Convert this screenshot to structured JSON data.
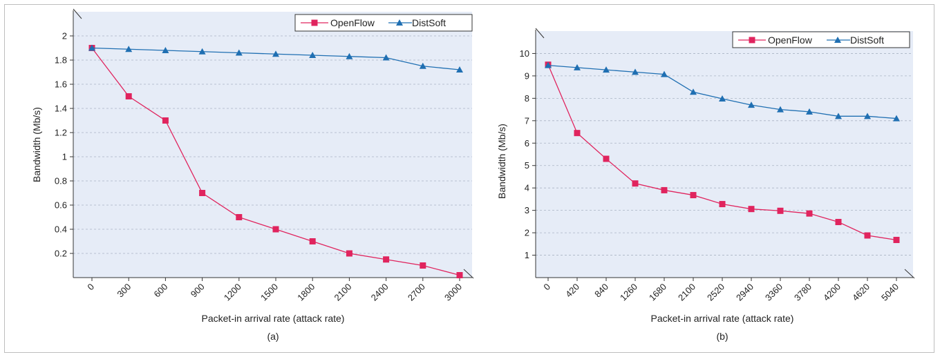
{
  "chart_data": [
    {
      "type": "line",
      "caption": "(a)",
      "xlabel": "Packet-in arrival rate (attack rate)",
      "ylabel": "Bandwidth (Mb/s)",
      "categories": [
        "0",
        "300",
        "600",
        "900",
        "1200",
        "1500",
        "1800",
        "2100",
        "2400",
        "2700",
        "3000"
      ],
      "ylim": [
        0,
        2.2
      ],
      "yticks": [
        0.2,
        0.4,
        0.6,
        0.8,
        1,
        1.2,
        1.4,
        1.6,
        1.8,
        2
      ],
      "ytick_labels": [
        "0.2",
        "0.4",
        "0.6",
        "0.8",
        "1",
        "1.2",
        "1.4",
        "1.6",
        "1.8",
        "2"
      ],
      "grid": true,
      "legend": "top-right",
      "series": [
        {
          "name": "OpenFlow",
          "color": "#e0245e",
          "marker": "square",
          "values": [
            1.9,
            1.5,
            1.3,
            0.7,
            0.5,
            0.4,
            0.3,
            0.2,
            0.15,
            0.1,
            0.02
          ]
        },
        {
          "name": "DistSoft",
          "color": "#1f6fb2",
          "marker": "triangle",
          "values": [
            1.9,
            1.89,
            1.88,
            1.87,
            1.86,
            1.85,
            1.84,
            1.83,
            1.82,
            1.75,
            1.72
          ]
        }
      ]
    },
    {
      "type": "line",
      "caption": "(b)",
      "xlabel": "Packet-in arrival rate (attack rate)",
      "ylabel": "Bandwidth (Mb/s)",
      "categories": [
        "0",
        "420",
        "840",
        "1260",
        "1680",
        "2100",
        "2520",
        "2940",
        "3360",
        "3780",
        "4200",
        "4620",
        "5040"
      ],
      "ylim": [
        0,
        11
      ],
      "yticks": [
        1,
        2,
        3,
        4,
        5,
        6,
        7,
        8,
        9,
        10
      ],
      "ytick_labels": [
        "1",
        "2",
        "3",
        "4",
        "5",
        "6",
        "7",
        "8",
        "9",
        "10"
      ],
      "grid": true,
      "legend": "top-right",
      "series": [
        {
          "name": "OpenFlow",
          "color": "#e0245e",
          "marker": "square",
          "values": [
            9.5,
            6.45,
            5.3,
            4.2,
            3.9,
            3.68,
            3.28,
            3.06,
            2.98,
            2.86,
            2.48,
            1.88,
            1.68
          ]
        },
        {
          "name": "DistSoft",
          "color": "#1f6fb2",
          "marker": "triangle",
          "values": [
            9.47,
            9.37,
            9.27,
            9.17,
            9.07,
            8.28,
            7.98,
            7.7,
            7.5,
            7.4,
            7.2,
            7.2,
            7.1
          ]
        }
      ]
    }
  ]
}
